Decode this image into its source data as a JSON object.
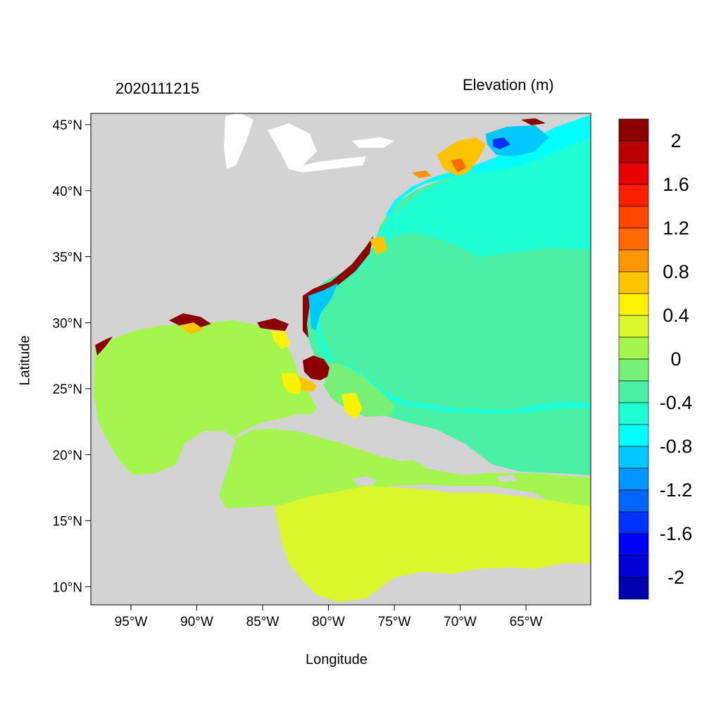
{
  "left_title": "2020111215",
  "right_title": "Elevation (m)",
  "x_axis": {
    "label": "Longitude",
    "ticks": [
      {
        "value": -95,
        "label": "95°W"
      },
      {
        "value": -90,
        "label": "90°W"
      },
      {
        "value": -85,
        "label": "85°W"
      },
      {
        "value": -80,
        "label": "80°W"
      },
      {
        "value": -75,
        "label": "75°W"
      },
      {
        "value": -70,
        "label": "70°W"
      },
      {
        "value": -65,
        "label": "65°W"
      }
    ]
  },
  "y_axis": {
    "label": "Latitude",
    "ticks": [
      {
        "value": 45,
        "label": "45°N"
      },
      {
        "value": 40,
        "label": "40°N"
      },
      {
        "value": 35,
        "label": "35°N"
      },
      {
        "value": 30,
        "label": "30°N"
      },
      {
        "value": 25,
        "label": "25°N"
      },
      {
        "value": 20,
        "label": "20°N"
      },
      {
        "value": 15,
        "label": "15°N"
      },
      {
        "value": 10,
        "label": "10°N"
      }
    ]
  },
  "colorbar": {
    "colors_top_to_bottom": [
      "#8b0000",
      "#bb0000",
      "#e60000",
      "#ff1f00",
      "#ff4500",
      "#ff6a00",
      "#ff9600",
      "#ffc400",
      "#fff200",
      "#d9f72a",
      "#a5f54f",
      "#76f076",
      "#4af0a4",
      "#1effd6",
      "#00ffff",
      "#00c8ff",
      "#0096ff",
      "#0064ff",
      "#0032ff",
      "#0000ff",
      "#0000d6",
      "#0000b0"
    ],
    "labels": [
      {
        "level_index": 1,
        "text": "2"
      },
      {
        "level_index": 3,
        "text": "1.6"
      },
      {
        "level_index": 5,
        "text": "1.2"
      },
      {
        "level_index": 7,
        "text": "0.8"
      },
      {
        "level_index": 9,
        "text": "0.4"
      },
      {
        "level_index": 11,
        "text": "0"
      },
      {
        "level_index": 13,
        "text": "-0.4"
      },
      {
        "level_index": 15,
        "text": "-0.8"
      },
      {
        "level_index": 17,
        "text": "-1.2"
      },
      {
        "level_index": 19,
        "text": "-1.6"
      },
      {
        "level_index": 21,
        "text": "-2"
      }
    ]
  },
  "map_colors": {
    "land": "#d3d3d3",
    "lakes": "#ffffff",
    "ocean_deep": "#4af0a4",
    "ocean_shelf": "#1effd6",
    "gulf": "#a5f54f",
    "caribbean": "#d9f72a",
    "surge_high": "#8b0000",
    "surge_orange": "#ffc400",
    "surge_yellow": "#fff200",
    "low_blue": "#00c8ff",
    "low_deep": "#0032ff"
  }
}
